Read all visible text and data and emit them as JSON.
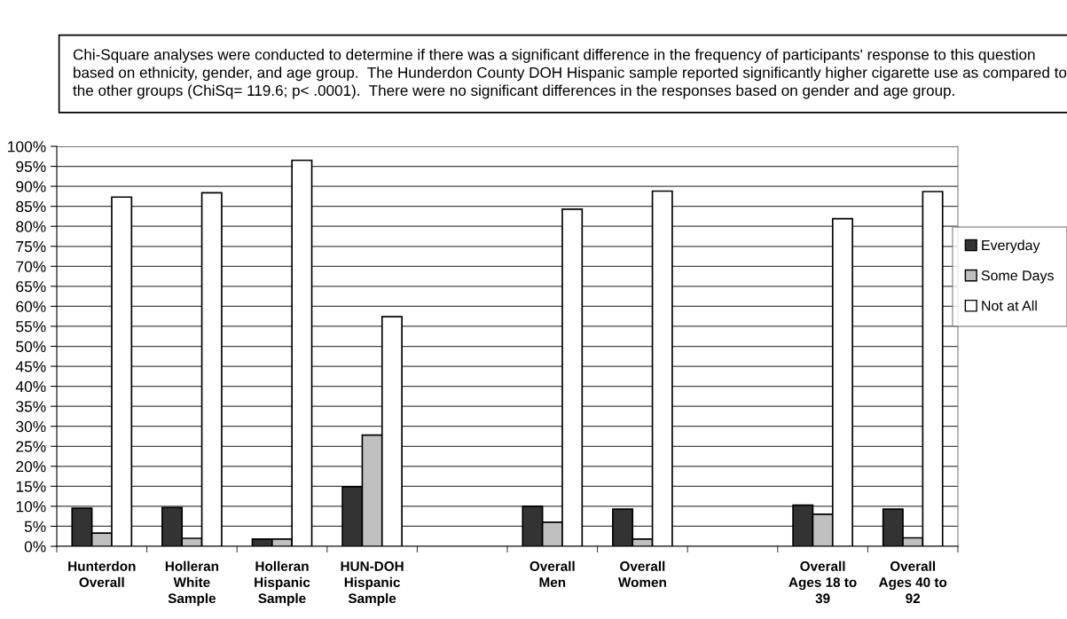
{
  "chart_data": {
    "type": "bar",
    "annotations": [
      "Chi-Square analyses were conducted to determine if there was a significant difference in the frequency of participants' response to this question based on ethnicity, gender, and age group.  The Hunderdon County DOH Hispanic sample reported significantly higher cigarette use as compared to the other groups (ChiSq= 119.6; p< .0001).  There were no significant differences in the responses based on gender and age group."
    ],
    "categories": [
      "Hunterdon\nOverall",
      "Holleran\nWhite\nSample",
      "Holleran\nHispanic\nSample",
      "HUN-DOH\nHispanic\nSample",
      null,
      "Overall\nMen",
      "Overall\nWomen",
      null,
      "Overall\nAges 18 to\n39",
      "Overall\nAges 40 to\n92"
    ],
    "series": [
      {
        "name": "Everyday",
        "color": "#333333",
        "values": [
          9.5,
          9.7,
          1.8,
          14.9,
          null,
          10.0,
          9.3,
          null,
          10.3,
          9.3
        ]
      },
      {
        "name": "Some Days",
        "color": "#c0c0c0",
        "values": [
          3.3,
          2.0,
          1.8,
          27.8,
          null,
          6.0,
          1.8,
          null,
          8.0,
          2.1
        ]
      },
      {
        "name": "Not at All",
        "color": "#ffffff",
        "values": [
          87.3,
          88.4,
          96.5,
          57.4,
          null,
          84.3,
          88.8,
          null,
          81.9,
          88.7
        ]
      }
    ],
    "ylim": [
      0,
      100
    ],
    "yticks": [
      {
        "value": 0,
        "label": "0%"
      },
      {
        "value": 5,
        "label": "5%"
      },
      {
        "value": 10,
        "label": "10%"
      },
      {
        "value": 15,
        "label": "15%"
      },
      {
        "value": 20,
        "label": "20%"
      },
      {
        "value": 25,
        "label": "25%"
      },
      {
        "value": 30,
        "label": "30%"
      },
      {
        "value": 35,
        "label": "35%"
      },
      {
        "value": 40,
        "label": "40%"
      },
      {
        "value": 45,
        "label": "45%"
      },
      {
        "value": 50,
        "label": "50%"
      },
      {
        "value": 55,
        "label": "55%"
      },
      {
        "value": 60,
        "label": "60%"
      },
      {
        "value": 65,
        "label": "65%"
      },
      {
        "value": 70,
        "label": "70%"
      },
      {
        "value": 75,
        "label": "75%"
      },
      {
        "value": 80,
        "label": "80%"
      },
      {
        "value": 85,
        "label": "85%"
      },
      {
        "value": 90,
        "label": "90%"
      },
      {
        "value": 95,
        "label": "95%"
      },
      {
        "value": 100,
        "label": "100%"
      }
    ],
    "grid": "y",
    "legend": "right"
  }
}
